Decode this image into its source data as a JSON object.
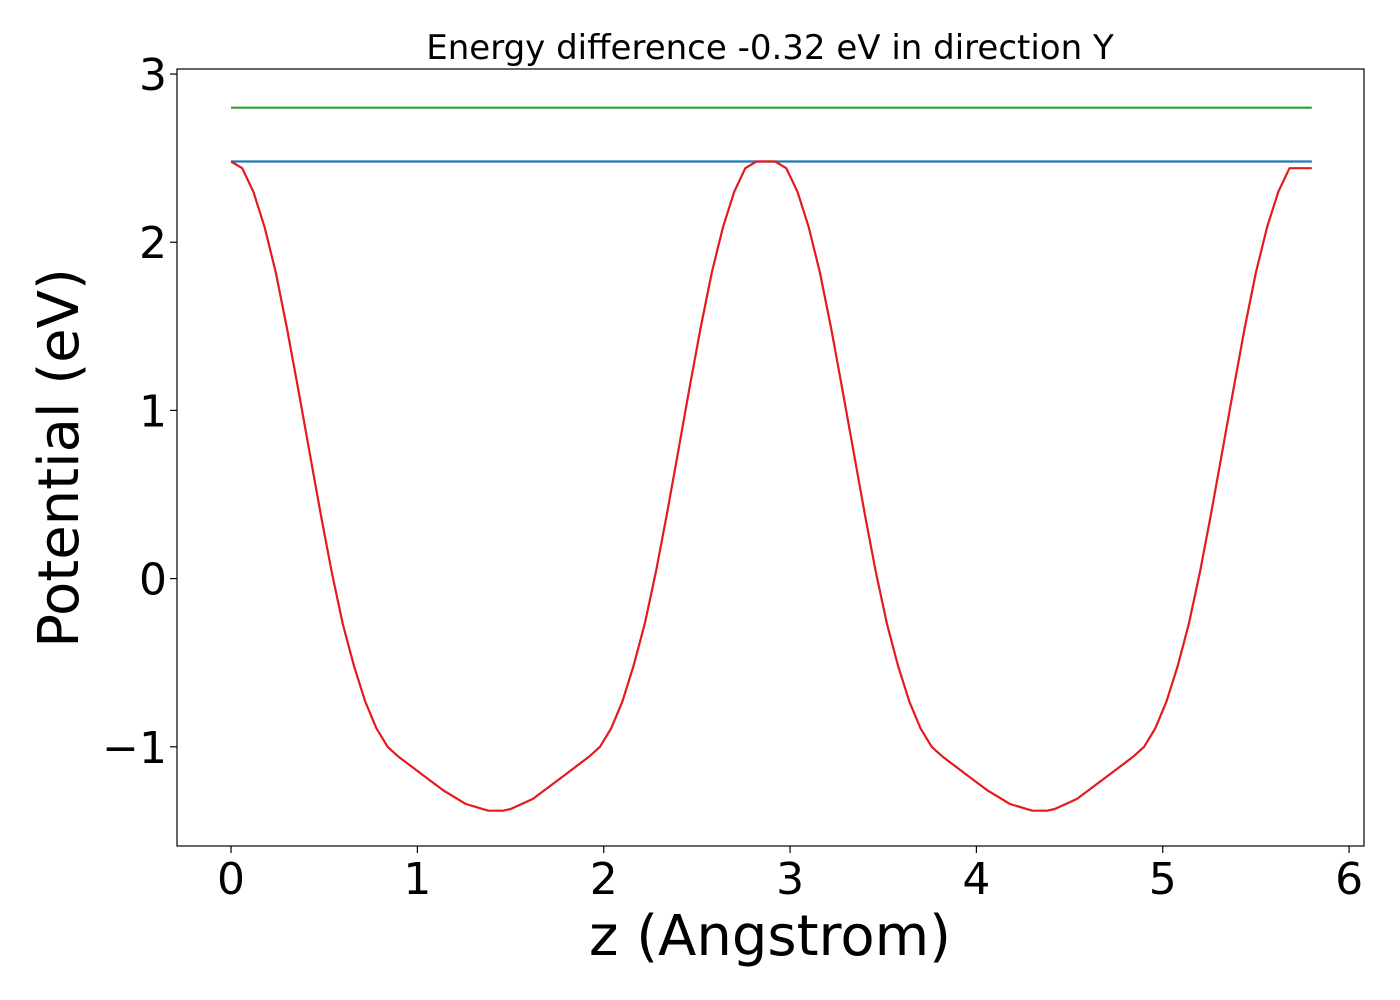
{
  "chart_data": {
    "type": "line",
    "title": "Energy difference -0.32 eV in direction Y",
    "xlabel": "z (Angstrom)",
    "ylabel": "Potential (eV)",
    "xlim": [
      -0.29,
      6.08
    ],
    "ylim": [
      -1.59,
      3.03
    ],
    "xticks": [
      0,
      1,
      2,
      3,
      4,
      5,
      6
    ],
    "xtick_labels": [
      "0",
      "1",
      "2",
      "3",
      "4",
      "5",
      "6"
    ],
    "yticks": [
      -1,
      0,
      1,
      2,
      3
    ],
    "ytick_labels": [
      "−1",
      "0",
      "1",
      "2",
      "3"
    ],
    "grid": false,
    "series": [
      {
        "color": "#2ca02c",
        "x": [
          0,
          5.8
        ],
        "y": [
          2.8,
          2.8
        ]
      },
      {
        "color": "#1f77b4",
        "x": [
          0,
          5.8
        ],
        "y": [
          2.48,
          2.48
        ]
      },
      {
        "color": "#e41a1c",
        "x": [
          0.0,
          0.06,
          0.12,
          0.18,
          0.24,
          0.3,
          0.36,
          0.42,
          0.48,
          0.54,
          0.6,
          0.66,
          0.72,
          0.78,
          0.84,
          0.9,
          0.96,
          1.02,
          1.08,
          1.14,
          1.2,
          1.26,
          1.32,
          1.38,
          1.44,
          1.46,
          1.5,
          1.56,
          1.62,
          1.68,
          1.74,
          1.8,
          1.86,
          1.92,
          1.98,
          2.04,
          2.1,
          2.16,
          2.22,
          2.28,
          2.34,
          2.4,
          2.46,
          2.52,
          2.58,
          2.64,
          2.7,
          2.76,
          2.82,
          2.88,
          2.92,
          2.98,
          3.04,
          3.1,
          3.16,
          3.22,
          3.28,
          3.34,
          3.4,
          3.46,
          3.52,
          3.58,
          3.64,
          3.7,
          3.76,
          3.82,
          3.88,
          3.94,
          4.0,
          4.06,
          4.12,
          4.18,
          4.24,
          4.3,
          4.36,
          4.38,
          4.42,
          4.48,
          4.54,
          4.6,
          4.66,
          4.72,
          4.78,
          4.84,
          4.9,
          4.96,
          5.02,
          5.08,
          5.14,
          5.2,
          5.26,
          5.32,
          5.38,
          5.44,
          5.5,
          5.56,
          5.62,
          5.68,
          5.74,
          5.8
        ],
        "y": [
          2.48,
          2.44,
          2.3,
          2.09,
          1.82,
          1.49,
          1.13,
          0.76,
          0.39,
          0.04,
          -0.27,
          -0.52,
          -0.73,
          -0.89,
          -1.0,
          -1.06,
          -1.11,
          -1.16,
          -1.21,
          -1.26,
          -1.3,
          -1.34,
          -1.36,
          -1.38,
          -1.38,
          -1.38,
          -1.37,
          -1.34,
          -1.31,
          -1.26,
          -1.21,
          -1.16,
          -1.11,
          -1.06,
          -1.0,
          -0.89,
          -0.73,
          -0.52,
          -0.27,
          0.04,
          0.39,
          0.76,
          1.13,
          1.49,
          1.82,
          2.09,
          2.3,
          2.44,
          2.48,
          2.48,
          2.48,
          2.44,
          2.3,
          2.09,
          1.82,
          1.49,
          1.13,
          0.76,
          0.39,
          0.04,
          -0.27,
          -0.52,
          -0.73,
          -0.89,
          -1.0,
          -1.06,
          -1.11,
          -1.16,
          -1.21,
          -1.26,
          -1.3,
          -1.34,
          -1.36,
          -1.38,
          -1.38,
          -1.38,
          -1.37,
          -1.34,
          -1.31,
          -1.26,
          -1.21,
          -1.16,
          -1.11,
          -1.06,
          -1.0,
          -0.89,
          -0.73,
          -0.52,
          -0.27,
          0.04,
          0.39,
          0.76,
          1.13,
          1.49,
          1.82,
          2.09,
          2.3,
          2.44,
          2.44,
          2.44
        ]
      }
    ]
  }
}
